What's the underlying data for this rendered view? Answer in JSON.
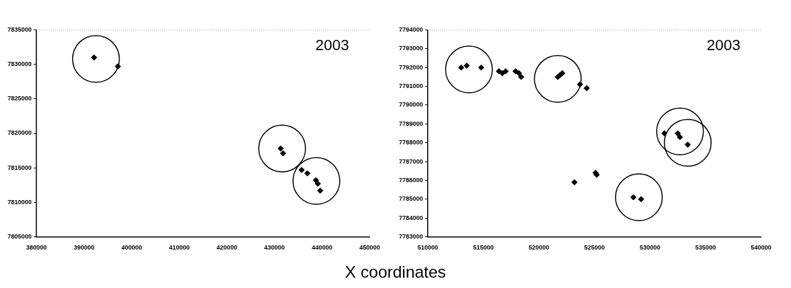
{
  "chart_data": [
    {
      "type": "scatter",
      "xlabel": "X coordinates",
      "annotations": [
        "2003"
      ],
      "xlim": [
        380000,
        450000
      ],
      "xticks": [
        380000,
        390000,
        400000,
        410000,
        420000,
        430000,
        440000,
        450000
      ],
      "ylim": [
        7805000,
        7835000
      ],
      "yticks": [
        7805000,
        7810000,
        7815000,
        7820000,
        7825000,
        7830000,
        7835000
      ],
      "grid": false,
      "legend": false,
      "series": [
        {
          "marker": "diamond",
          "color": "#000000",
          "x": [
            392100,
            397100,
            431300,
            431800,
            435700,
            436900,
            438700,
            439100,
            439600
          ],
          "values": [
            7831000,
            7829700,
            7817800,
            7817100,
            7814700,
            7814200,
            7813200,
            7812700,
            7811700
          ]
        },
        {
          "type": "bubble",
          "color": "#000000",
          "x": [
            392500,
            431600,
            438800
          ],
          "values": [
            7830800,
            7817800,
            7813100
          ],
          "sizes": [
            1,
            1,
            1
          ]
        }
      ]
    },
    {
      "type": "scatter",
      "annotations": [
        "2003"
      ],
      "xlim": [
        510000,
        540000
      ],
      "xticks": [
        510000,
        515000,
        520000,
        525000,
        530000,
        535000,
        540000
      ],
      "ylim": [
        7783000,
        7794000
      ],
      "yticks": [
        7783000,
        7784000,
        7785000,
        7786000,
        7787000,
        7788000,
        7789000,
        7790000,
        7791000,
        7792000,
        7793000,
        7794000
      ],
      "grid": false,
      "legend": false,
      "series": [
        {
          "marker": "diamond",
          "color": "#000000",
          "x": [
            513000,
            513500,
            514800,
            516400,
            516700,
            517000,
            517900,
            518200,
            518400,
            521700,
            521900,
            522100,
            523700,
            524300,
            523200,
            525100,
            525200,
            528500,
            529200,
            531300,
            532500,
            532700,
            533400
          ],
          "values": [
            7792000,
            7792100,
            7792000,
            7791800,
            7791700,
            7791800,
            7791800,
            7791700,
            7791500,
            7791500,
            7791600,
            7791700,
            7791100,
            7790900,
            7785900,
            7786400,
            7786300,
            7785100,
            7785000,
            7788500,
            7788500,
            7788300,
            7787900
          ]
        },
        {
          "type": "bubble",
          "color": "#000000",
          "x": [
            513700,
            521700,
            532700,
            533400,
            529000
          ],
          "values": [
            7791900,
            7791400,
            7788600,
            7788000,
            7785100
          ],
          "sizes": [
            1,
            1,
            1,
            1,
            1
          ]
        }
      ]
    }
  ]
}
